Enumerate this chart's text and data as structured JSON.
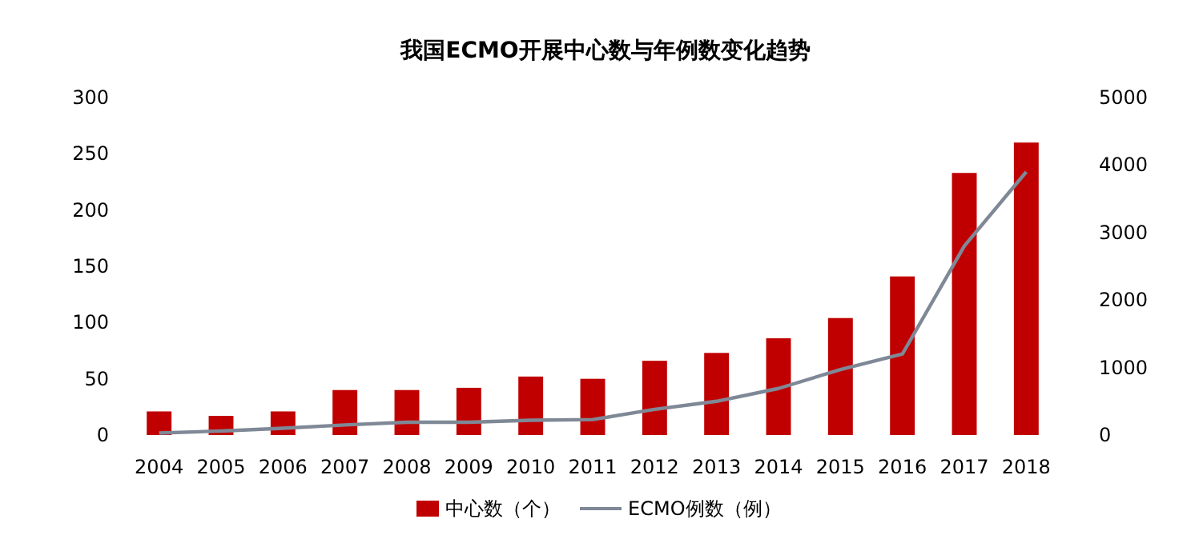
{
  "chart_data": {
    "type": "bar",
    "title": "我国ECMO开展中心数与年例数变化趋势",
    "categories": [
      "2004",
      "2005",
      "2006",
      "2007",
      "2008",
      "2009",
      "2010",
      "2011",
      "2012",
      "2013",
      "2014",
      "2015",
      "2016",
      "2017",
      "2018"
    ],
    "series": [
      {
        "name": "中心数（个）",
        "color": "#c00000",
        "values": [
          21,
          17,
          21,
          40,
          40,
          42,
          52,
          50,
          66,
          73,
          86,
          104,
          141,
          233,
          260
        ]
      },
      {
        "name": "ECMO例数（例）",
        "color": "#7f8896",
        "type": "line",
        "axis": "y2",
        "values": [
          30,
          60,
          100,
          150,
          190,
          190,
          220,
          230,
          380,
          500,
          690,
          970,
          1200,
          2800,
          3900
        ]
      }
    ],
    "ylim": [
      0,
      300
    ],
    "yticks": [
      0,
      50,
      100,
      150,
      200,
      250,
      300
    ],
    "y2lim": [
      0,
      5000
    ],
    "y2ticks": [
      0,
      1000,
      2000,
      3000,
      4000,
      5000
    ],
    "grid": false,
    "legend": "bottom",
    "marker": "none",
    "line_style": "solid"
  }
}
